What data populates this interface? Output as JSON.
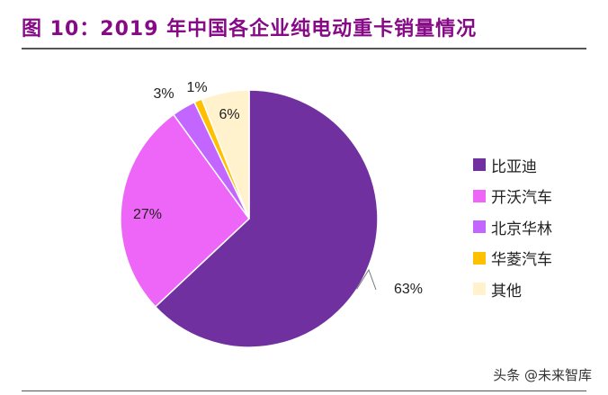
{
  "title": "图 10：2019 年中国各企业纯电动重卡销量情况",
  "watermark": "头条 @未来智库",
  "chart_data": {
    "type": "pie",
    "title": "图 10：2019 年中国各企业纯电动重卡销量情况",
    "categories": [
      "比亚迪",
      "开沃汽车",
      "北京华林",
      "华菱汽车",
      "其他"
    ],
    "values": [
      63,
      27,
      3,
      1,
      6
    ],
    "labels": [
      "63%",
      "27%",
      "3%",
      "1%",
      "6%"
    ],
    "colors": [
      "#7030A0",
      "#EE66F7",
      "#C266FF",
      "#FFC000",
      "#FFF2CC"
    ],
    "legend_position": "right",
    "start": "top",
    "direction": "clockwise"
  }
}
